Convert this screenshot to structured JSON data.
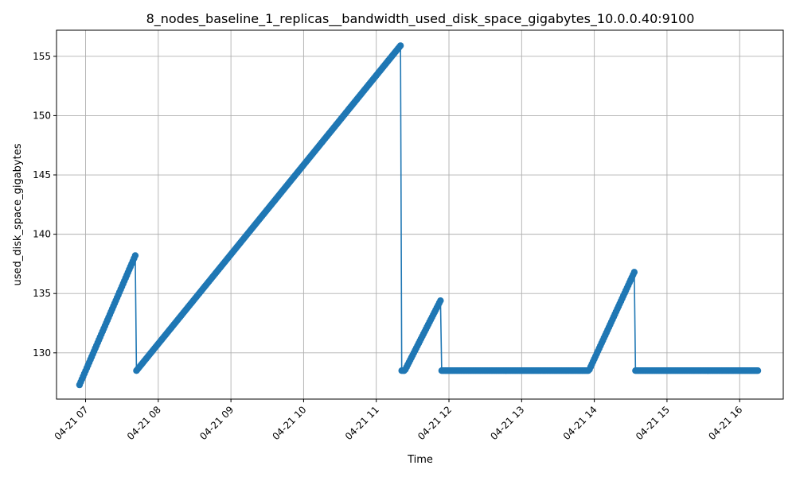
{
  "chart_data": {
    "type": "line",
    "title": "8_nodes_baseline_1_replicas__bandwidth_used_disk_space_gigabytes_10.0.0.40:9100",
    "xlabel": "Time",
    "ylabel": "used_disk_space_gigabytes",
    "grid": true,
    "legend": "none",
    "marker": "circle",
    "color": "#1f77b4",
    "x_tick_labels": [
      "04-21 07",
      "04-21 08",
      "04-21 09",
      "04-21 10",
      "04-21 11",
      "04-21 12",
      "04-21 13",
      "04-21 14",
      "04-21 15",
      "04-21 16"
    ],
    "x_tick_times": [
      "04-21 07:00",
      "04-21 08:00",
      "04-21 09:00",
      "04-21 10:00",
      "04-21 11:00",
      "04-21 12:00",
      "04-21 13:00",
      "04-21 14:00",
      "04-21 15:00",
      "04-21 16:00"
    ],
    "xlim": [
      "04-21 06:36",
      "04-21 16:36"
    ],
    "y_ticks": [
      130,
      135,
      140,
      145,
      150,
      155
    ],
    "ylim": [
      126.1,
      157.2
    ],
    "series": [
      {
        "segments": [
          {
            "start": "04-21 06:55",
            "end": "04-21 07:41",
            "y_start": 127.3,
            "y_end": 138.2
          },
          {
            "start": "04-21 07:42",
            "end": "04-21 11:20",
            "y_start": 128.5,
            "y_end": 155.9
          },
          {
            "start": "04-21 11:21",
            "end": "04-21 11:23",
            "y_start": 128.5,
            "y_end": 128.5
          },
          {
            "start": "04-21 11:24",
            "end": "04-21 11:53",
            "y_start": 128.6,
            "y_end": 134.4
          },
          {
            "start": "04-21 11:54",
            "end": "04-21 13:55",
            "y_start": 128.5,
            "y_end": 128.5
          },
          {
            "start": "04-21 13:56",
            "end": "04-21 14:33",
            "y_start": 128.6,
            "y_end": 136.8
          },
          {
            "start": "04-21 14:34",
            "end": "04-21 16:15",
            "y_start": 128.5,
            "y_end": 128.5
          }
        ]
      }
    ]
  }
}
